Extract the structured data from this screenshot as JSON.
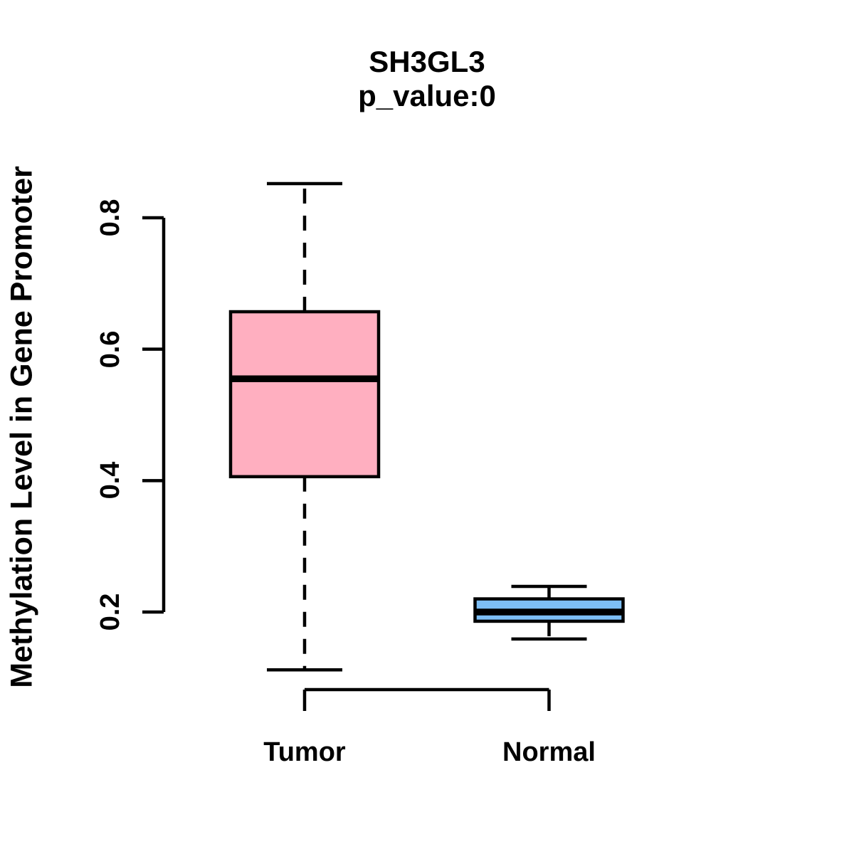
{
  "chart_data": {
    "type": "boxplot",
    "title": "SH3GL3",
    "subtitle": "p_value:0",
    "ylabel": "Methylation Level in Gene Promoter",
    "xlabel": "",
    "yticks": [
      0.2,
      0.4,
      0.6,
      0.8
    ],
    "ytick_labels": [
      "0.2",
      "0.4",
      "0.6",
      "0.8"
    ],
    "ylim": [
      0.09,
      0.87
    ],
    "axis_range": [
      0.2,
      0.8
    ],
    "grid": "off",
    "legend": "none",
    "colors": {
      "tumor_fill": "#FFAFC0",
      "normal_fill": "#7DBEF5",
      "stroke": "#000000",
      "background": "#FFFFFF"
    },
    "groups": [
      {
        "label": "Tumor",
        "fill": "#FFAFC0",
        "stats": {
          "lower_whisker": 0.112,
          "q1": 0.406,
          "median": 0.555,
          "q3": 0.657,
          "upper_whisker": 0.852
        }
      },
      {
        "label": "Normal",
        "fill": "#7DBEF5",
        "stats": {
          "lower_whisker": 0.159,
          "q1": 0.186,
          "median": 0.2,
          "q3": 0.22,
          "upper_whisker": 0.239
        }
      }
    ]
  }
}
